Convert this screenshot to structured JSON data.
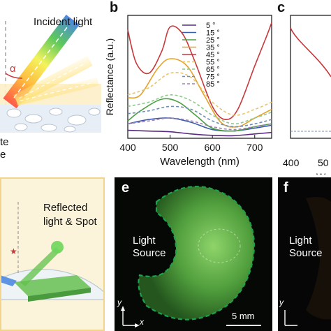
{
  "panel_a": {
    "incident_light": "Incident light",
    "angle_symbol": "α",
    "cut_label_1": "te",
    "cut_label_2": "e"
  },
  "panel_b": {
    "label": "b",
    "legend_unit": "°"
  },
  "panel_c": {
    "label": "c",
    "ylabel": "Reflectance (a.u.)",
    "xlabel_partial": "Wa",
    "tick_400": "400",
    "tick_500_partial": "50"
  },
  "panel_d": {
    "reflected_1": "Reflected",
    "reflected_2": "light & Spot"
  },
  "panel_e": {
    "label": "e",
    "light_1": "Light",
    "light_2": "Source",
    "scale": "5 mm",
    "axis_y": "y",
    "axis_x": "x"
  },
  "panel_f": {
    "label": "f",
    "light_1": "Light",
    "light_2": "Source",
    "axis_y": "y"
  },
  "colors": {
    "green_dash": "#1aa34a",
    "glow": "#6cbf4a"
  },
  "chart_data": {
    "type": "line",
    "xlabel": "Wavelength (nm)",
    "ylabel": "Reflectance (a.u.)",
    "xlim": [
      400,
      740
    ],
    "xticks": [
      400,
      500,
      600,
      700
    ],
    "series": [
      {
        "name": "5",
        "color": "#5a2a82",
        "dash": false,
        "x": [
          400,
          450,
          500,
          550,
          600,
          650,
          700,
          740
        ],
        "y": [
          0.055,
          0.05,
          0.045,
          0.03,
          0.02,
          0.018,
          0.03,
          0.04
        ]
      },
      {
        "name": "15",
        "color": "#3b5ca8",
        "dash": false,
        "x": [
          400,
          450,
          500,
          550,
          600,
          650,
          700,
          740
        ],
        "y": [
          0.1,
          0.13,
          0.14,
          0.11,
          0.06,
          0.05,
          0.07,
          0.09
        ]
      },
      {
        "name": "25",
        "color": "#4aa043",
        "dash": false,
        "x": [
          400,
          430,
          480,
          520,
          560,
          600,
          650,
          700,
          740
        ],
        "y": [
          0.12,
          0.19,
          0.27,
          0.25,
          0.16,
          0.07,
          0.05,
          0.08,
          0.1
        ]
      },
      {
        "name": "35",
        "color": "#e6a12a",
        "dash": false,
        "x": [
          400,
          430,
          470,
          500,
          540,
          580,
          620,
          660,
          700,
          740
        ],
        "y": [
          0.28,
          0.3,
          0.48,
          0.55,
          0.5,
          0.3,
          0.11,
          0.08,
          0.14,
          0.2
        ]
      },
      {
        "name": "45",
        "color": "#c8373a",
        "dash": false,
        "x": [
          400,
          420,
          450,
          480,
          500,
          530,
          560,
          600,
          630,
          660,
          700,
          730,
          740
        ],
        "y": [
          0.75,
          0.52,
          0.45,
          0.6,
          0.77,
          0.72,
          0.52,
          0.22,
          0.13,
          0.2,
          0.5,
          0.72,
          0.8
        ]
      },
      {
        "name": "55",
        "color": "#e8c46e",
        "dash": true,
        "x": [
          400,
          450,
          500,
          550,
          600,
          650,
          700,
          740
        ],
        "y": [
          0.3,
          0.35,
          0.45,
          0.42,
          0.25,
          0.16,
          0.2,
          0.25
        ]
      },
      {
        "name": "65",
        "color": "#8cc98a",
        "dash": true,
        "x": [
          400,
          450,
          500,
          550,
          600,
          650,
          700,
          740
        ],
        "y": [
          0.22,
          0.25,
          0.3,
          0.26,
          0.16,
          0.1,
          0.14,
          0.18
        ]
      },
      {
        "name": "75",
        "color": "#6d8fb7",
        "dash": true,
        "x": [
          400,
          450,
          500,
          550,
          600,
          650,
          700,
          740
        ],
        "y": [
          0.17,
          0.19,
          0.22,
          0.2,
          0.12,
          0.08,
          0.1,
          0.13
        ]
      },
      {
        "name": "85",
        "color": "#a47fb5",
        "dash": true,
        "x": [
          400,
          450,
          500,
          550,
          600,
          650,
          700,
          740
        ],
        "y": [
          0.1,
          0.12,
          0.14,
          0.12,
          0.08,
          0.06,
          0.08,
          0.1
        ]
      }
    ]
  }
}
